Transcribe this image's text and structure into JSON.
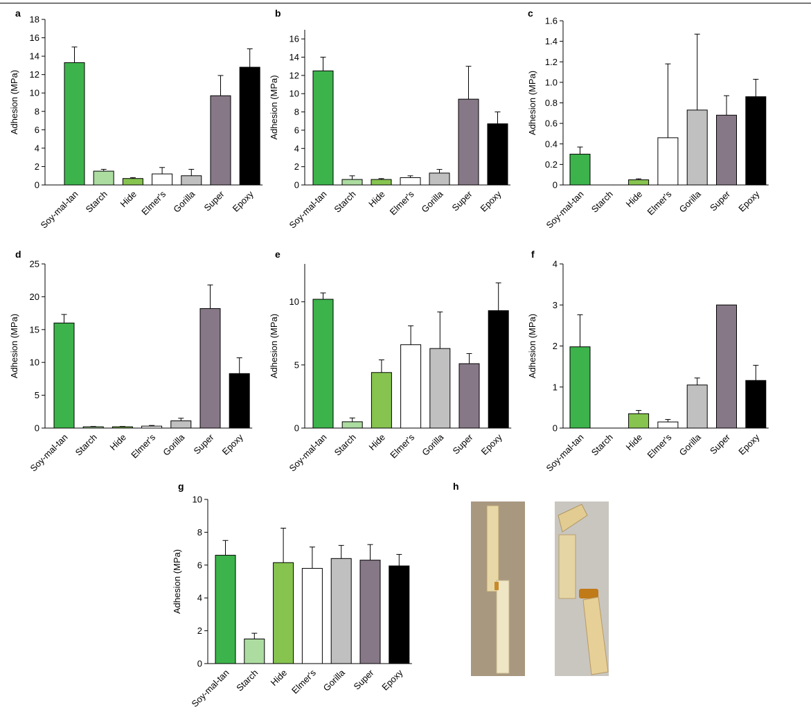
{
  "colors": {
    "Soy-mal-tan": "#3cb44b",
    "Starch": "#acdca0",
    "Hide": "#86c44f",
    "Elmer's": "#ffffff",
    "Gorilla": "#c0c0c0",
    "Super": "#877887",
    "Epoxy": "#000000"
  },
  "chart_data": [
    {
      "panel": "a",
      "type": "bar",
      "categories": [
        "Soy-mal-tan",
        "Starch",
        "Hide",
        "Elmer's",
        "Gorilla",
        "Super",
        "Epoxy"
      ],
      "values": [
        13.3,
        1.5,
        0.7,
        1.2,
        1.0,
        9.7,
        12.8
      ],
      "errors": [
        1.7,
        0.2,
        0.1,
        0.7,
        0.7,
        2.2,
        2.0
      ],
      "ylabel": "Adhesion (MPa)",
      "ylim": [
        0,
        18
      ],
      "yticks": [
        "0",
        "2",
        "4",
        "6",
        "8",
        "10",
        "12",
        "14",
        "16",
        "18"
      ]
    },
    {
      "panel": "b",
      "type": "bar",
      "categories": [
        "Soy-mal-tan",
        "Starch",
        "Hide",
        "Elmer's",
        "Gorilla",
        "Super",
        "Epoxy"
      ],
      "values": [
        12.5,
        0.6,
        0.6,
        0.8,
        1.3,
        9.4,
        6.7
      ],
      "errors": [
        1.5,
        0.4,
        0.1,
        0.2,
        0.4,
        3.6,
        1.3
      ],
      "ylabel": "Adhesion (MPa)",
      "ylim": [
        0,
        17
      ],
      "yticks": [
        "0",
        "2",
        "4",
        "6",
        "8",
        "10",
        "12",
        "14",
        "16"
      ]
    },
    {
      "panel": "c",
      "type": "bar",
      "categories": [
        "Soy-mal-tan",
        "Starch",
        "Hide",
        "Elmer's",
        "Gorilla",
        "Super",
        "Epoxy"
      ],
      "values": [
        0.3,
        0.0,
        0.05,
        0.46,
        0.73,
        0.68,
        0.86
      ],
      "errors": [
        0.07,
        0.0,
        0.01,
        0.72,
        0.74,
        0.19,
        0.17
      ],
      "ylabel": "Adhesion (MPa)",
      "ylim": [
        0,
        1.6
      ],
      "yticks": [
        "0",
        "0.2",
        "0.4",
        "0.6",
        "0.8",
        "1.0",
        "1.2",
        "1.4",
        "1.6"
      ]
    },
    {
      "panel": "d",
      "type": "bar",
      "categories": [
        "Soy-mal-tan",
        "Starch",
        "Hide",
        "Elmer's",
        "Gorilla",
        "Super",
        "Epoxy"
      ],
      "values": [
        16.0,
        0.2,
        0.2,
        0.3,
        1.1,
        18.2,
        8.3
      ],
      "errors": [
        1.3,
        0.05,
        0.05,
        0.1,
        0.4,
        3.6,
        2.4
      ],
      "ylabel": "Adhesion (MPa)",
      "ylim": [
        0,
        25
      ],
      "yticks": [
        "0",
        "5",
        "10",
        "15",
        "20",
        "25"
      ]
    },
    {
      "panel": "e",
      "type": "bar",
      "categories": [
        "Soy-mal-tan",
        "Starch",
        "Hide",
        "Elmer's",
        "Gorilla",
        "Super",
        "Epoxy"
      ],
      "values": [
        10.2,
        0.5,
        4.4,
        6.6,
        6.3,
        5.1,
        9.3
      ],
      "errors": [
        0.5,
        0.3,
        1.0,
        1.5,
        2.9,
        0.8,
        2.2
      ],
      "ylabel": "Adhesion (MPa)",
      "ylim": [
        0,
        13
      ],
      "yticks": [
        "0",
        "5",
        "10"
      ]
    },
    {
      "panel": "f",
      "type": "bar",
      "categories": [
        "Soy-mal-tan",
        "Starch",
        "Hide",
        "Elmer's",
        "Gorilla",
        "Super",
        "Epoxy"
      ],
      "values": [
        1.98,
        0.0,
        0.35,
        0.15,
        1.05,
        3.0,
        1.16
      ],
      "errors": [
        0.78,
        0.0,
        0.08,
        0.06,
        0.17,
        0.0,
        0.37
      ],
      "ylabel": "Adhesion (MPa)",
      "ylim": [
        0,
        4
      ],
      "yticks": [
        "0",
        "1",
        "2",
        "3",
        "4"
      ]
    },
    {
      "panel": "g",
      "type": "bar",
      "categories": [
        "Soy-mal-tan",
        "Starch",
        "Hide",
        "Elmer's",
        "Gorilla",
        "Super",
        "Epoxy"
      ],
      "values": [
        6.6,
        1.5,
        6.15,
        5.8,
        6.4,
        6.3,
        5.95
      ],
      "errors": [
        0.9,
        0.35,
        2.1,
        1.3,
        0.8,
        0.95,
        0.7
      ],
      "ylabel": "Adhesion (MPa)",
      "ylim": [
        0,
        10
      ],
      "yticks": [
        "0",
        "2",
        "4",
        "6",
        "8",
        "10"
      ]
    }
  ],
  "photo_panel": {
    "panel": "h"
  }
}
